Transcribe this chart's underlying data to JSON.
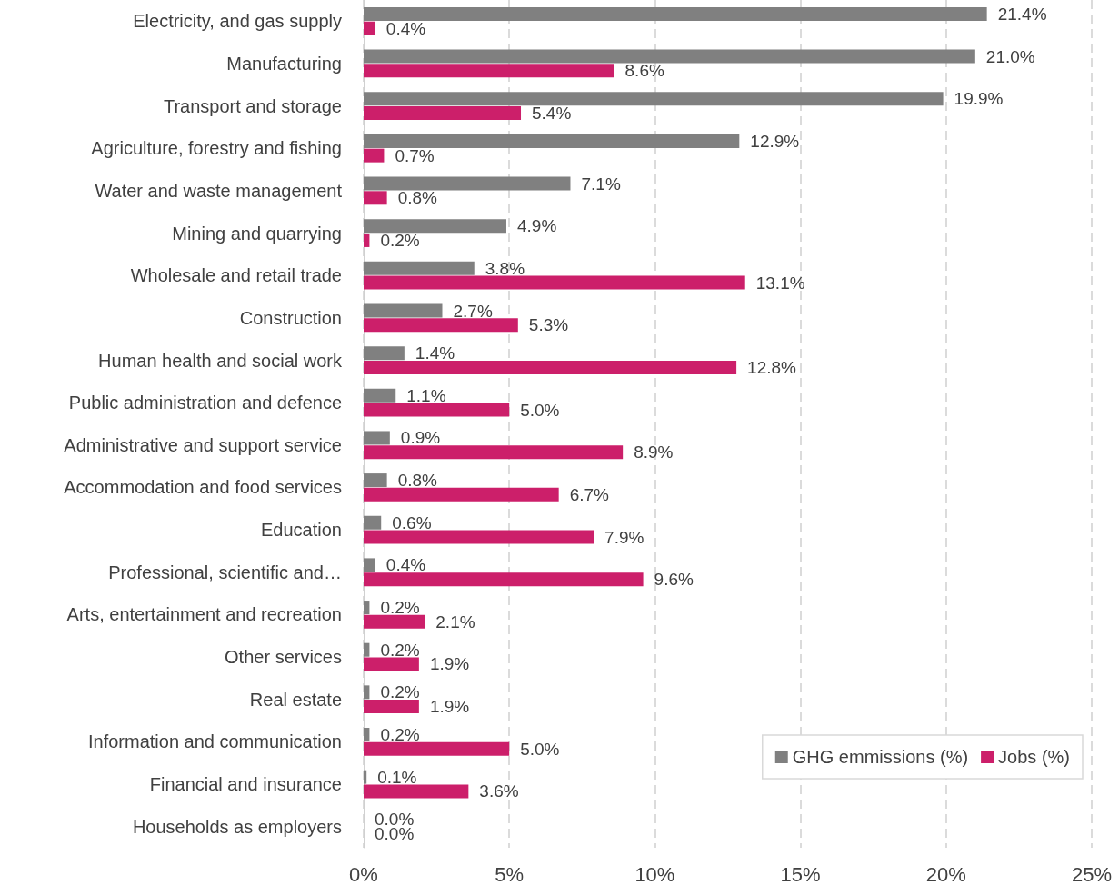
{
  "chart_data": {
    "type": "bar",
    "orientation": "horizontal",
    "categories": [
      "Electricity, and gas supply",
      "Manufacturing",
      "Transport and storage",
      "Agriculture, forestry and fishing",
      "Water and waste management",
      "Mining and quarrying",
      "Wholesale and retail trade",
      "Construction",
      "Human health and social work",
      "Public administration and defence",
      "Administrative and support service",
      "Accommodation and food services",
      "Education",
      "Professional, scientific and…",
      "Arts, entertainment and recreation",
      "Other services",
      "Real estate",
      "Information and communication",
      "Financial and insurance",
      "Households as employers"
    ],
    "series": [
      {
        "name": "GHG emmissions (%)",
        "color": "#808080",
        "values": [
          21.4,
          21.0,
          19.9,
          12.9,
          7.1,
          4.9,
          3.8,
          2.7,
          1.4,
          1.1,
          0.9,
          0.8,
          0.6,
          0.4,
          0.2,
          0.2,
          0.2,
          0.2,
          0.1,
          0.0
        ],
        "value_labels": [
          "21.4%",
          "21.0%",
          "19.9%",
          "12.9%",
          "7.1%",
          "4.9%",
          "3.8%",
          "2.7%",
          "1.4%",
          "1.1%",
          "0.9%",
          "0.8%",
          "0.6%",
          "0.4%",
          "0.2%",
          "0.2%",
          "0.2%",
          "0.2%",
          "0.1%",
          "0.0%"
        ]
      },
      {
        "name": "Jobs (%)",
        "color": "#cc1f6a",
        "values": [
          0.4,
          8.6,
          5.4,
          0.7,
          0.8,
          0.2,
          13.1,
          5.3,
          12.8,
          5.0,
          8.9,
          6.7,
          7.9,
          9.6,
          2.1,
          1.9,
          1.9,
          5.0,
          3.6,
          0.0
        ],
        "value_labels": [
          "0.4%",
          "8.6%",
          "5.4%",
          "0.7%",
          "0.8%",
          "0.2%",
          "13.1%",
          "5.3%",
          "12.8%",
          "5.0%",
          "8.9%",
          "6.7%",
          "7.9%",
          "9.6%",
          "2.1%",
          "1.9%",
          "1.9%",
          "5.0%",
          "3.6%",
          "0.0%"
        ]
      }
    ],
    "xlim": [
      0,
      25
    ],
    "xticks": [
      {
        "value": 0,
        "label": "0%"
      },
      {
        "value": 5,
        "label": "5%"
      },
      {
        "value": 10,
        "label": "10%"
      },
      {
        "value": 15,
        "label": "15%"
      },
      {
        "value": 20,
        "label": "20%"
      },
      {
        "value": 25,
        "label": "25%"
      }
    ],
    "grid": "x",
    "legend": "bottom right"
  }
}
